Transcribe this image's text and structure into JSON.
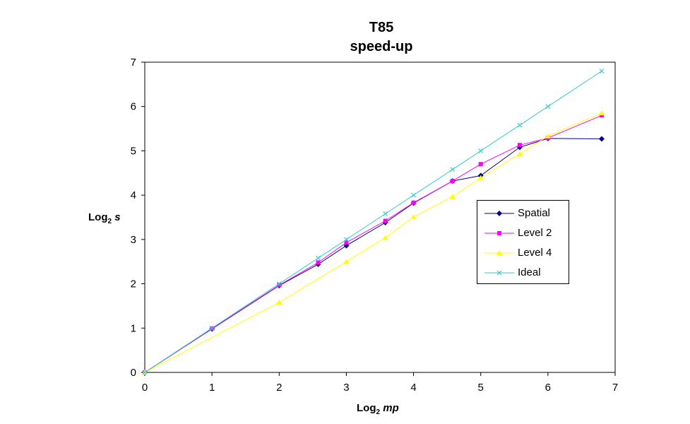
{
  "chart_data": {
    "type": "line",
    "title": "T85",
    "subtitle": "speed-up",
    "ylabel_main": "Log",
    "ylabel_sub": "2",
    "ylabel_var": "s",
    "xlabel_main": "Log",
    "xlabel_sub": "2",
    "xlabel_var": "mp",
    "xlim": [
      0,
      7
    ],
    "ylim": [
      0,
      7
    ],
    "xticks": [
      0,
      1,
      2,
      3,
      4,
      5,
      6,
      7
    ],
    "yticks": [
      0,
      1,
      2,
      3,
      4,
      5,
      6,
      7
    ],
    "grid": false,
    "legend_position": "right",
    "series": [
      {
        "name": "Spatial",
        "color": "#000080",
        "marker": "diamond",
        "x": [
          0,
          1,
          2,
          2.58,
          3,
          3.58,
          4,
          4.58,
          5,
          5.58,
          6,
          6.8
        ],
        "y": [
          0,
          0.98,
          1.96,
          2.44,
          2.86,
          3.38,
          3.82,
          4.32,
          4.44,
          5.08,
          5.28,
          5.27
        ]
      },
      {
        "name": "Level 2",
        "color": "#ff00ff",
        "marker": "square",
        "x": [
          0,
          1,
          2,
          2.58,
          3,
          3.58,
          4,
          4.58,
          5,
          5.58,
          6,
          6.8
        ],
        "y": [
          0,
          0.99,
          1.97,
          2.48,
          2.93,
          3.42,
          3.83,
          4.32,
          4.7,
          5.13,
          5.29,
          5.8
        ]
      },
      {
        "name": "Level 4",
        "color": "#ffff00",
        "marker": "triangle",
        "x": [
          0,
          2,
          3,
          3.58,
          4,
          4.58,
          5,
          5.58,
          6,
          6.8
        ],
        "y": [
          0,
          1.58,
          2.5,
          3.04,
          3.51,
          3.97,
          4.39,
          4.93,
          5.33,
          5.85
        ]
      },
      {
        "name": "Ideal",
        "color": "#33cccc",
        "marker": "x",
        "x": [
          0,
          1,
          2,
          2.58,
          3,
          3.58,
          4,
          4.58,
          5,
          5.58,
          6,
          6.8
        ],
        "y": [
          0,
          1,
          2,
          2.58,
          3,
          3.58,
          4,
          4.58,
          5,
          5.58,
          6,
          6.8
        ]
      }
    ]
  }
}
